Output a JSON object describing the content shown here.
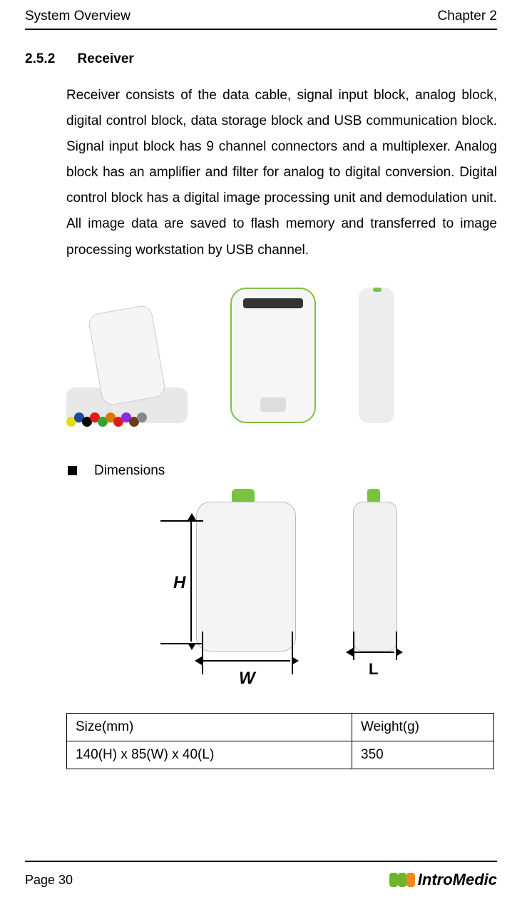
{
  "header": {
    "left": "System Overview",
    "right": "Chapter 2"
  },
  "section": {
    "number": "2.5.2",
    "title": "Receiver"
  },
  "paragraph": "Receiver consists of the data cable, signal input block, analog block, digital control block, data storage block and USB communication block. Signal input block has 9 channel connectors and a multiplexer. Analog block has an amplifier and filter for analog to digital conversion. Digital control block has a digital image processing unit and demodulation unit. All image data are saved to flash memory and transferred to image processing workstation by USB channel.",
  "dimensions_heading": "Dimensions",
  "dim_labels": {
    "H": "H",
    "W": "W",
    "L": "L"
  },
  "spec_table": {
    "columns": [
      "Size(mm)",
      "Weight(g)"
    ],
    "rows": [
      [
        "140(H) x 85(W) x 40(L)",
        "350"
      ]
    ]
  },
  "cable_colors": [
    "#e8d916",
    "#1b4aa0",
    "#000000",
    "#e01b1b",
    "#34a334",
    "#d97a00",
    "#e01b1b",
    "#8a2be2",
    "#6b3a1e",
    "#888888"
  ],
  "colors": {
    "accent_green": "#7cc242",
    "logo_green": "#6fb52a",
    "logo_orange": "#f08a1d",
    "text": "#000000",
    "rule": "#000000",
    "background": "#ffffff"
  },
  "footer": {
    "page": "Page 30",
    "logo_text": "IntroMedic"
  }
}
